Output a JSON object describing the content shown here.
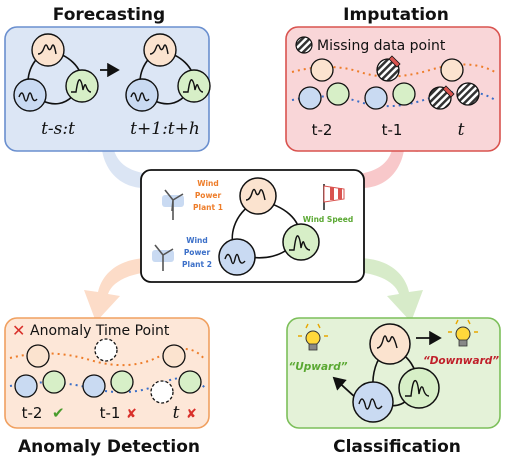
{
  "titles": {
    "forecasting": "Forecasting",
    "imputation": "Imputation",
    "anomaly": "Anomaly Detection",
    "classification": "Classification"
  },
  "forecasting": {
    "label_left": "t-s:t",
    "label_right": "t+1:t+h"
  },
  "imputation": {
    "legend": "Missing data point",
    "labels": [
      "t-2",
      "t-1",
      "t"
    ]
  },
  "center": {
    "plant1_lines": [
      "Wind",
      "Power",
      "Plant 1"
    ],
    "plant2_lines": [
      "Wind",
      "Power",
      "Plant 2"
    ],
    "wind_speed": "Wind Speed"
  },
  "anomaly": {
    "legend": "Anomaly Time Point",
    "labels": [
      "t-2",
      "t-1",
      "t"
    ],
    "marks": [
      "✔",
      "✘",
      "✘"
    ]
  },
  "classification": {
    "upward": "“Upward”",
    "downward": "“Downward”"
  },
  "colors": {
    "blue_box_fill": "#dce6f5",
    "blue_box_stroke": "#6a8fcf",
    "red_box_fill": "#f9d6d8",
    "red_box_stroke": "#d9534f",
    "orange_box_fill": "#fde7d8",
    "orange_box_stroke": "#f0a060",
    "green_box_fill": "#e4f2d8",
    "green_box_stroke": "#7cbf5a",
    "node_orange": "#fbe3cf",
    "node_blue": "#c9daf2",
    "node_green": "#d7efc7",
    "orange_text": "#ee7d2a",
    "blue_text": "#3b6fc8",
    "green_text": "#5aa832",
    "dark_red": "#c0202a"
  }
}
